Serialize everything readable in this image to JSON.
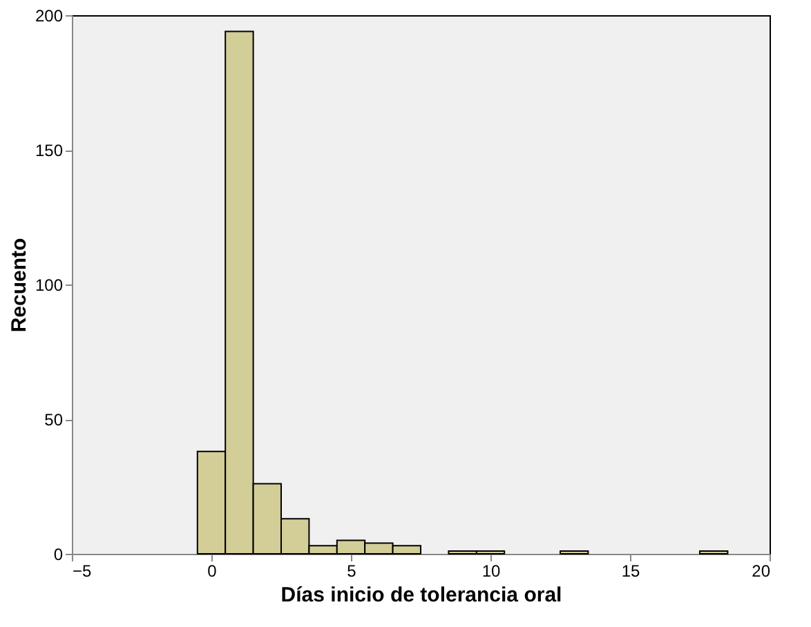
{
  "chart_data": {
    "type": "histogram",
    "xlabel": "Días inicio de tolerancia oral",
    "ylabel": "Recuento",
    "bins": [
      -0.5,
      0.5,
      1.5,
      2.5,
      3.5,
      4.5,
      5.5,
      6.5,
      7.5,
      8.5,
      9.5,
      10.5,
      11.5,
      12.5,
      13.5,
      14.5,
      15.5,
      16.5,
      17.5,
      18.5
    ],
    "values": [
      38,
      194,
      26,
      13,
      3,
      5,
      4,
      3,
      0,
      1,
      1,
      0,
      0,
      1,
      0,
      0,
      0,
      0,
      1
    ],
    "color": "#d3ce97",
    "xlim": [
      -5,
      20
    ],
    "xticks": [
      -5,
      0,
      5,
      10,
      15,
      20
    ],
    "ylim": [
      0,
      200
    ],
    "yticks": [
      0,
      50,
      100,
      150,
      200
    ],
    "grid": false
  }
}
